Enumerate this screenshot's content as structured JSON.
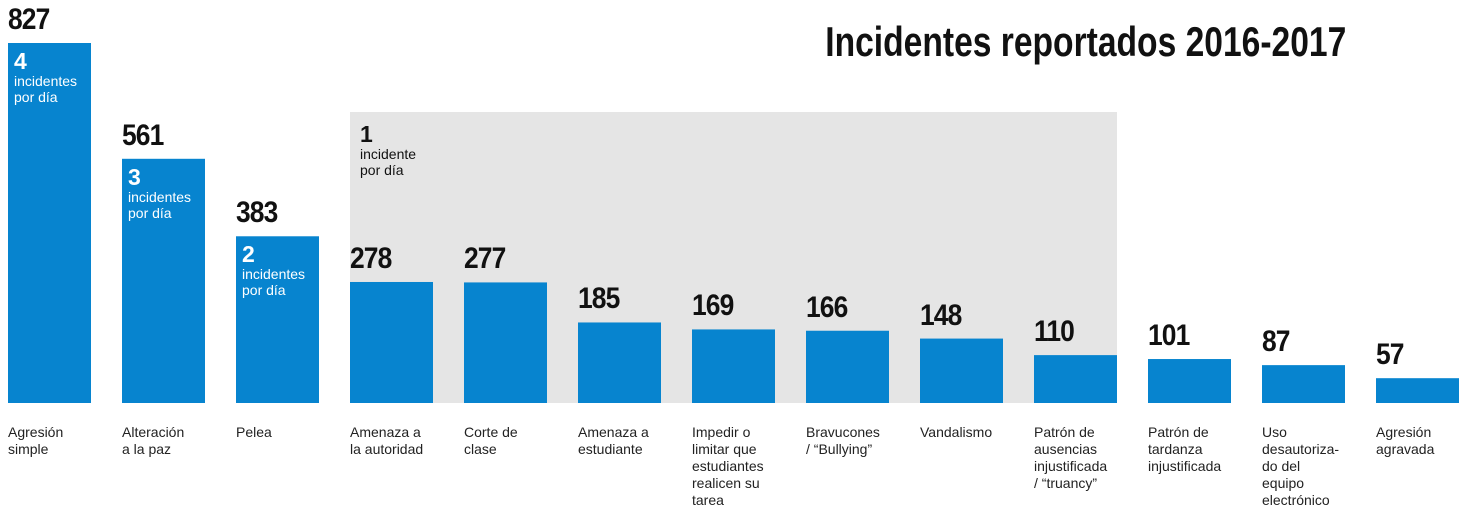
{
  "chart_data": {
    "type": "bar",
    "title": "Incidentes reportados 2016-2017",
    "categories": [
      "Agresión\nsimple",
      "Alteración\na la paz",
      "Pelea",
      "Amenaza a\nla autoridad",
      "Corte de\nclase",
      "Amenaza a\nestudiante",
      "Impedir o\nlimitar que\nestudiantes\nrealicen su\ntarea",
      "Bravucones\n/ “Bullying”",
      "Vandalismo",
      "Patrón de\nausencias\ninjustificada\n/ “truancy”",
      "Patrón de\ntardanza\ninjustificada",
      "Uso\ndesautoriza-\ndo del\nequipo\nelectrónico",
      "Agresión\nagravada"
    ],
    "values": [
      827,
      561,
      383,
      278,
      277,
      185,
      169,
      166,
      148,
      110,
      101,
      87,
      57
    ],
    "color": "#0784cf",
    "annotations": [
      {
        "rate": 4,
        "text": "incidentes\npor día"
      },
      {
        "rate": 3,
        "text": "incidentes\npor día"
      },
      {
        "rate": 2,
        "text": "incidentes\npor día"
      },
      {
        "rate": 1,
        "text": "incidente\npor día"
      }
    ]
  }
}
